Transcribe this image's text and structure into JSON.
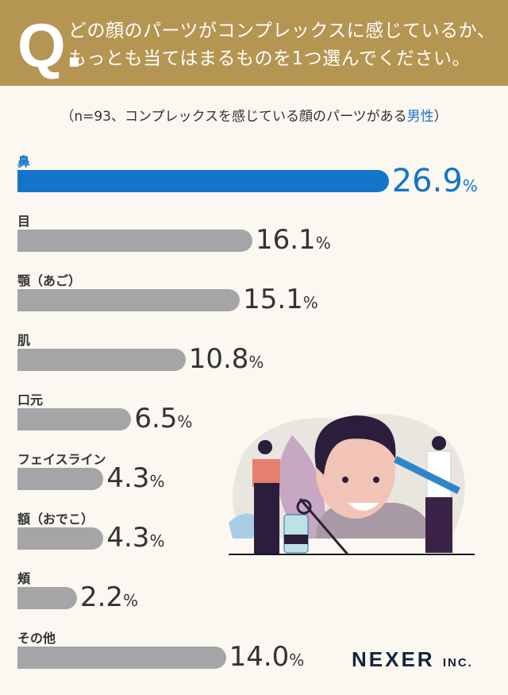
{
  "header": {
    "q_mark": "Q.",
    "question_line1": "どの顔のパーツがコンプレックスに感じているか、",
    "question_line2": "もっとも当てはまるものを1つ選んでください。"
  },
  "subtitle": {
    "prefix": "（n=93、コンプレックスを感じている顔のパーツがある",
    "highlight": "男性",
    "suffix": "）"
  },
  "colors": {
    "header": "#b59552",
    "highlight_bar": "#1375c9",
    "bar": "#a5a5a8",
    "background": "#fbf7f1"
  },
  "chart_data": {
    "type": "bar",
    "orientation": "horizontal",
    "categories": [
      "鼻",
      "目",
      "顎（あご）",
      "肌",
      "口元",
      "フェイスライン",
      "額（おでこ）",
      "頬",
      "その他"
    ],
    "values": [
      26.9,
      16.1,
      15.1,
      10.8,
      6.5,
      4.3,
      4.3,
      2.2,
      14.0
    ],
    "value_labels": [
      "26.9",
      "16.1",
      "15.1",
      "10.8",
      "6.5",
      "4.3",
      "4.3",
      "2.2",
      "14.0"
    ],
    "unit": "%",
    "highlight_index": 0
  },
  "logo": {
    "name": "NEXER",
    "suffix": "INC."
  }
}
